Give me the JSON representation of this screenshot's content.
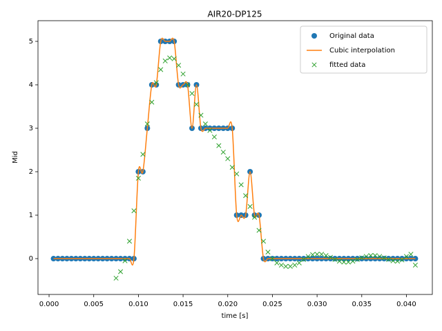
{
  "chart_data": {
    "type": "line",
    "title": "AIR20-DP125",
    "x_label": "time [s]",
    "y_label": "Mid",
    "xlim": [
      -0.00124,
      0.0429
    ],
    "ylim": [
      -0.825,
      5.476
    ],
    "xticks": [
      {
        "value": 0,
        "label": "0.000"
      },
      {
        "value": 0.005,
        "label": "0.005"
      },
      {
        "value": 0.01,
        "label": "0.010"
      },
      {
        "value": 0.015,
        "label": "0.015"
      },
      {
        "value": 0.02,
        "label": "0.020"
      },
      {
        "value": 0.025,
        "label": "0.025"
      },
      {
        "value": 0.03,
        "label": "0.030"
      },
      {
        "value": 0.035,
        "label": "0.035"
      },
      {
        "value": 0.04,
        "label": "0.040"
      }
    ],
    "yticks": [
      0,
      1,
      2,
      3,
      4,
      5
    ],
    "legend": "upper right",
    "series": [
      {
        "name": "Original data",
        "color": "#1f77b4",
        "style": "marker-circle",
        "x": [
          0.0005,
          0.001,
          0.0015,
          0.002,
          0.0025,
          0.003,
          0.0035,
          0.004,
          0.0045,
          0.005,
          0.0055,
          0.006,
          0.0065,
          0.007,
          0.0075,
          0.008,
          0.0085,
          0.009,
          0.0095,
          0.01,
          0.0105,
          0.011,
          0.0115,
          0.012,
          0.0125,
          0.013,
          0.0135,
          0.014,
          0.0145,
          0.015,
          0.0155,
          0.016,
          0.0165,
          0.017,
          0.0175,
          0.018,
          0.0185,
          0.019,
          0.0195,
          0.02,
          0.0205,
          0.021,
          0.0215,
          0.022,
          0.0225,
          0.023,
          0.0235,
          0.024,
          0.0245,
          0.025,
          0.0255,
          0.026,
          0.0265,
          0.027,
          0.0275,
          0.028,
          0.0285,
          0.029,
          0.0295,
          0.03,
          0.0305,
          0.031,
          0.0315,
          0.032,
          0.0325,
          0.033,
          0.0335,
          0.034,
          0.0345,
          0.035,
          0.0355,
          0.036,
          0.0365,
          0.037,
          0.0375,
          0.038,
          0.0385,
          0.039,
          0.0395,
          0.04,
          0.0405,
          0.041
        ],
        "values": [
          0,
          0,
          0,
          0,
          0,
          0,
          0,
          0,
          0,
          0,
          0,
          0,
          0,
          0,
          0,
          0,
          0,
          0,
          0,
          2,
          2,
          3,
          4,
          4,
          5,
          5,
          5,
          5,
          4,
          4,
          4,
          3,
          4,
          3,
          3,
          3,
          3,
          3,
          3,
          3,
          3,
          1,
          1,
          1,
          2,
          1,
          1,
          0,
          0,
          0,
          0,
          0,
          0,
          0,
          0,
          0,
          0,
          0,
          0,
          0,
          0,
          0,
          0,
          0,
          0,
          0,
          0,
          0,
          0,
          0,
          0,
          0,
          0,
          0,
          0,
          0,
          0,
          0,
          0,
          0,
          0,
          0
        ]
      },
      {
        "name": "Cubic interpolation",
        "color": "#ff7f0e",
        "style": "line",
        "x": [
          0.0005,
          0.001,
          0.0015,
          0.002,
          0.0025,
          0.003,
          0.0035,
          0.004,
          0.0045,
          0.005,
          0.0055,
          0.006,
          0.0065,
          0.007,
          0.0075,
          0.008,
          0.0085,
          0.009,
          0.0095,
          0.01,
          0.0105,
          0.011,
          0.0115,
          0.012,
          0.0125,
          0.013,
          0.0135,
          0.014,
          0.0145,
          0.015,
          0.0155,
          0.016,
          0.0165,
          0.017,
          0.0175,
          0.018,
          0.0185,
          0.019,
          0.0195,
          0.02,
          0.0205,
          0.021,
          0.0215,
          0.022,
          0.0225,
          0.023,
          0.0235,
          0.024,
          0.0245,
          0.025,
          0.0255,
          0.026,
          0.0265,
          0.027,
          0.0275,
          0.028,
          0.0285,
          0.029,
          0.0295,
          0.03,
          0.0305,
          0.031,
          0.0315,
          0.032,
          0.0325,
          0.033,
          0.0335,
          0.034,
          0.0345,
          0.035,
          0.0355,
          0.036,
          0.0365,
          0.037,
          0.0375,
          0.038,
          0.0385,
          0.039,
          0.0395,
          0.04,
          0.0405,
          0.041
        ],
        "values": [
          0,
          0,
          0,
          0,
          0,
          0,
          0,
          0,
          0,
          0,
          0,
          0,
          0,
          0,
          0,
          0,
          0,
          0,
          0,
          2,
          2,
          3,
          4,
          4,
          5,
          5,
          5,
          5,
          4,
          4,
          4,
          3,
          4,
          3,
          3,
          3,
          3,
          3,
          3,
          3,
          3,
          1,
          1,
          1,
          2,
          1,
          1,
          0,
          0,
          0,
          0,
          0,
          0,
          0,
          0,
          0,
          0,
          0,
          0,
          0,
          0,
          0,
          0,
          0,
          0,
          0,
          0,
          0,
          0,
          0,
          0,
          0,
          0,
          0,
          0,
          0,
          0,
          0,
          0,
          0,
          0,
          0
        ]
      },
      {
        "name": "fitted data",
        "color": "#2ca02c",
        "style": "marker-x",
        "x": [
          0.0075,
          0.008,
          0.0085,
          0.009,
          0.0095,
          0.01,
          0.0105,
          0.011,
          0.0115,
          0.012,
          0.0125,
          0.013,
          0.0135,
          0.014,
          0.0145,
          0.015,
          0.0155,
          0.016,
          0.0165,
          0.017,
          0.0175,
          0.018,
          0.0185,
          0.019,
          0.0195,
          0.02,
          0.0205,
          0.021,
          0.0215,
          0.022,
          0.0225,
          0.023,
          0.0235,
          0.024,
          0.0245,
          0.025,
          0.0255,
          0.026,
          0.0265,
          0.027,
          0.0275,
          0.028,
          0.0285,
          0.029,
          0.0295,
          0.03,
          0.0305,
          0.031,
          0.0315,
          0.032,
          0.0325,
          0.033,
          0.0335,
          0.034,
          0.0345,
          0.035,
          0.0355,
          0.036,
          0.0365,
          0.037,
          0.0375,
          0.038,
          0.0385,
          0.039,
          0.0395,
          0.04,
          0.0405,
          0.041
        ],
        "values": [
          -0.45,
          -0.3,
          -0.05,
          0.4,
          1.1,
          1.85,
          2.4,
          3.1,
          3.6,
          4.05,
          4.35,
          4.55,
          4.62,
          4.6,
          4.45,
          4.25,
          4.0,
          3.8,
          3.55,
          3.3,
          3.1,
          2.95,
          2.8,
          2.6,
          2.45,
          2.3,
          2.1,
          1.95,
          1.7,
          1.45,
          1.2,
          0.95,
          0.65,
          0.4,
          0.15,
          0.0,
          -0.1,
          -0.15,
          -0.18,
          -0.18,
          -0.15,
          -0.1,
          -0.02,
          0.05,
          0.09,
          0.1,
          0.1,
          0.07,
          0.03,
          -0.02,
          -0.06,
          -0.08,
          -0.08,
          -0.06,
          -0.02,
          0.02,
          0.05,
          0.07,
          0.07,
          0.05,
          0.02,
          -0.02,
          -0.05,
          -0.06,
          -0.03,
          0.05,
          0.1,
          -0.15
        ]
      }
    ]
  }
}
